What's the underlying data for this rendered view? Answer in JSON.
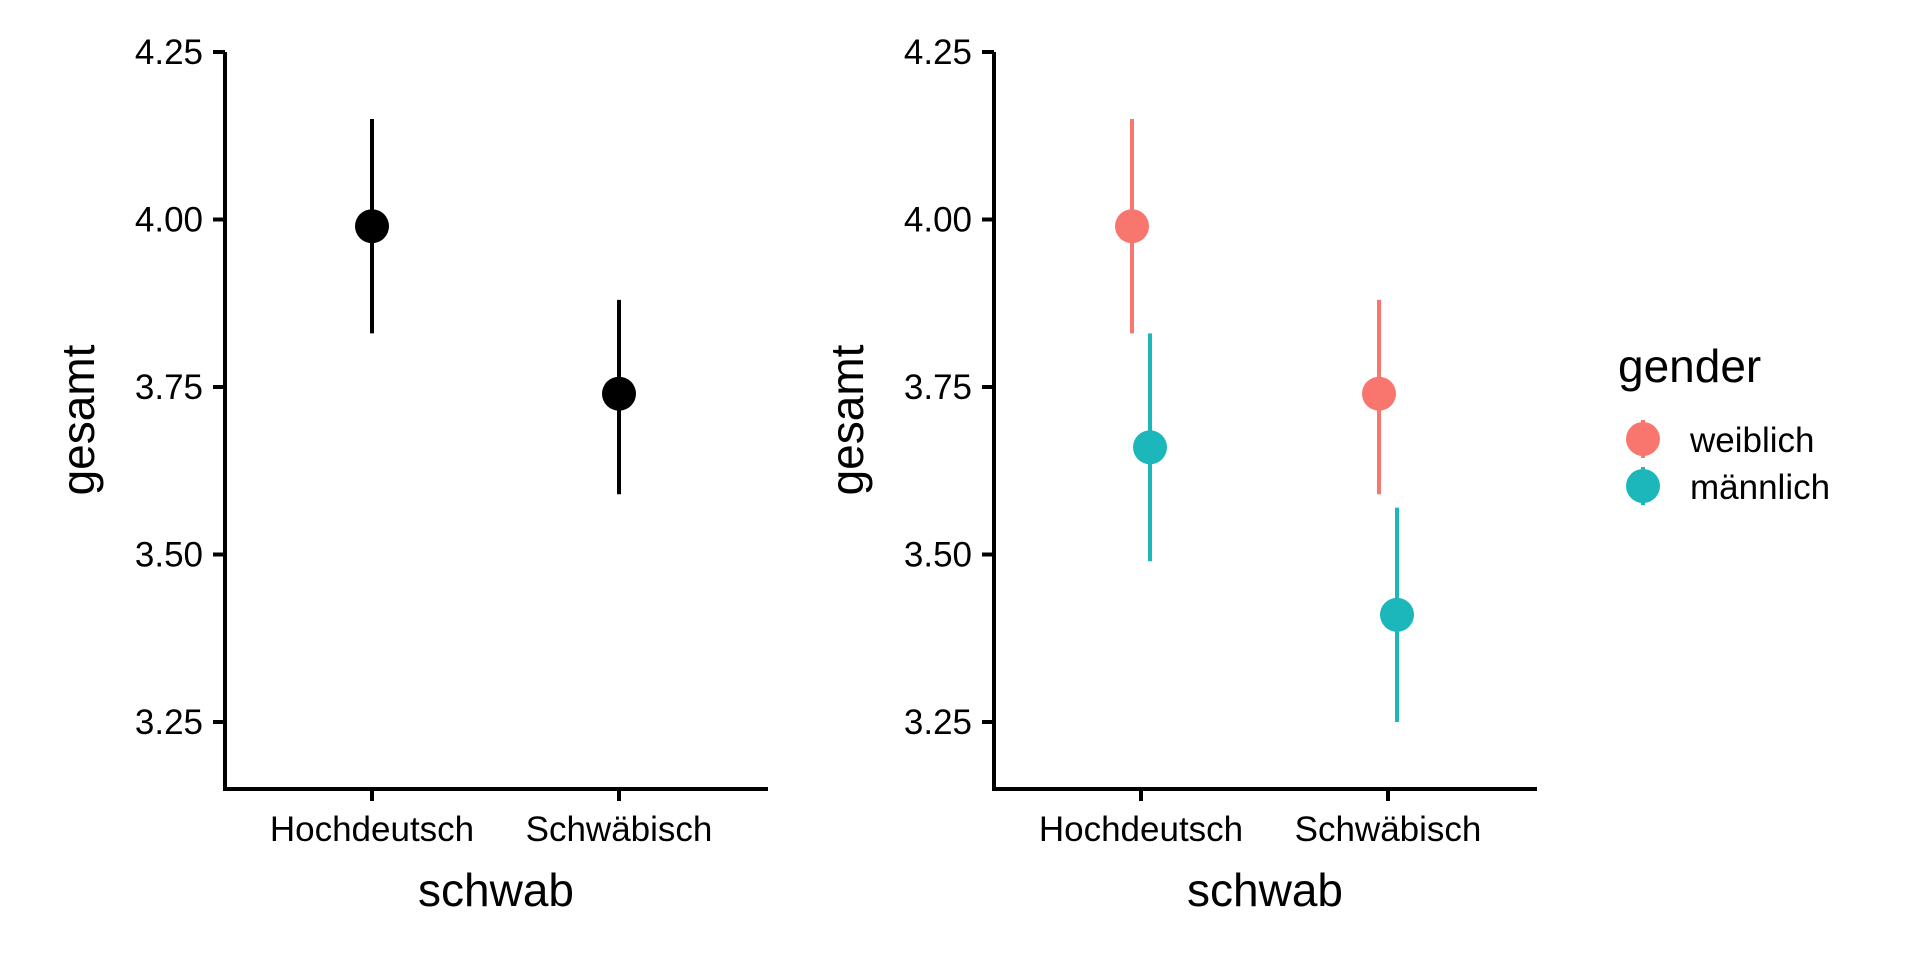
{
  "colors": {
    "axis": "#000000",
    "single": "#000000",
    "weiblich": "#F8766D",
    "maennlich": "#1CB7BA"
  },
  "chart_data": [
    {
      "type": "scatter",
      "title": "",
      "xlabel": "schwab",
      "ylabel": "gesamt",
      "categories": [
        "Hochdeutsch",
        "Schwäbisch"
      ],
      "ylim": [
        3.15,
        4.25
      ],
      "yticks": [
        "3.25",
        "3.50",
        "3.75",
        "4.00",
        "4.25"
      ],
      "series": [
        {
          "values": [
            3.99,
            3.74
          ],
          "lower": [
            3.83,
            3.59
          ],
          "upper": [
            4.15,
            3.88
          ]
        }
      ]
    },
    {
      "type": "scatter",
      "title": "",
      "xlabel": "schwab",
      "ylabel": "gesamt",
      "categories": [
        "Hochdeutsch",
        "Schwäbisch"
      ],
      "ylim": [
        3.15,
        4.25
      ],
      "yticks": [
        "3.25",
        "3.50",
        "3.75",
        "4.00",
        "4.25"
      ],
      "legend": {
        "title": "gender",
        "position": "right"
      },
      "series": [
        {
          "name": "weiblich",
          "values": [
            3.99,
            3.74
          ],
          "lower": [
            3.83,
            3.59
          ],
          "upper": [
            4.15,
            3.88
          ]
        },
        {
          "name": "männlich",
          "values": [
            3.66,
            3.41
          ],
          "lower": [
            3.49,
            3.25
          ],
          "upper": [
            3.83,
            3.57
          ]
        }
      ]
    }
  ]
}
